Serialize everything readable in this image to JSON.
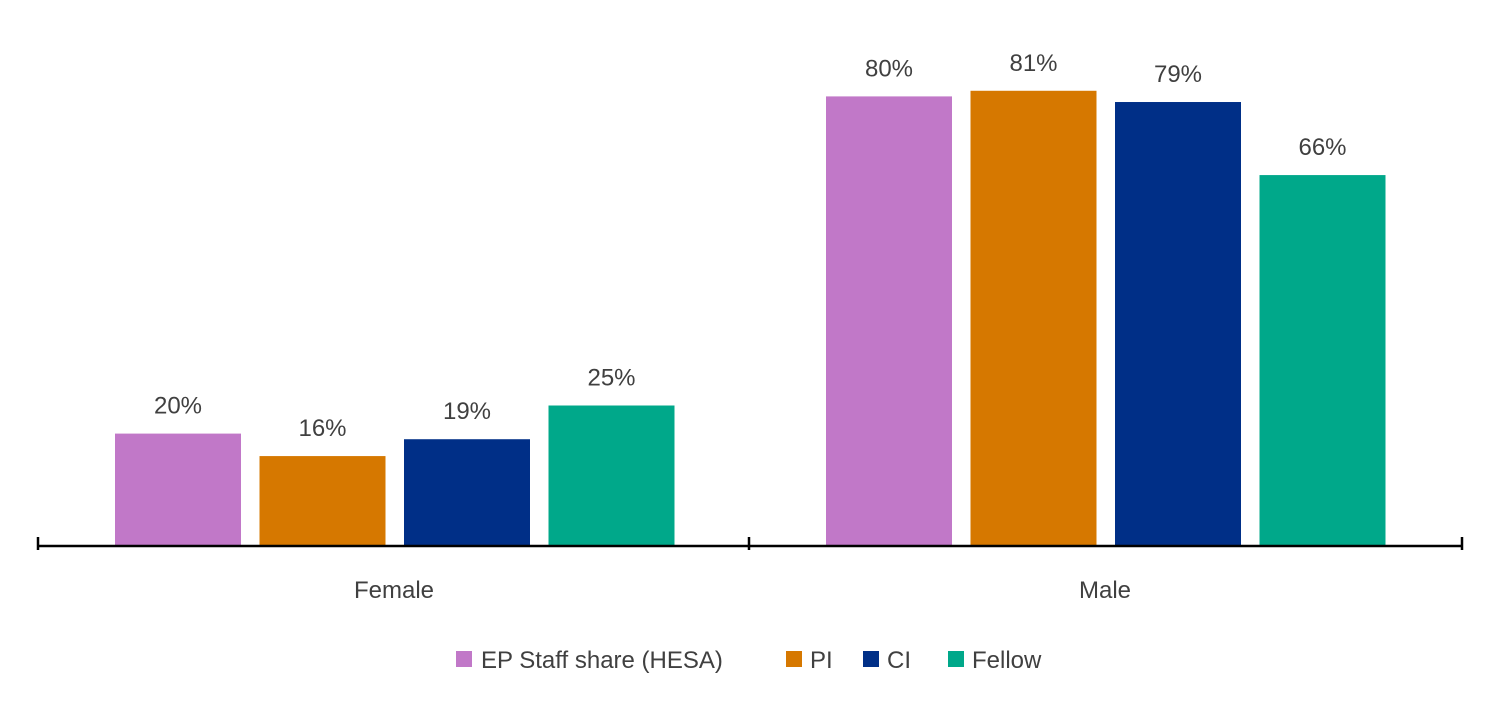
{
  "chart_data": {
    "type": "bar",
    "title": "",
    "xlabel": "",
    "ylabel": "",
    "ylim": [
      0,
      85
    ],
    "grid": false,
    "legend_position": "bottom",
    "categories": [
      "Female",
      "Male"
    ],
    "series": [
      {
        "name": "EP Staff share (HESA)",
        "color": "#C178C8",
        "values": [
          20,
          80
        ],
        "labels": [
          "20%",
          "80%"
        ]
      },
      {
        "name": "PI",
        "color": "#D67800",
        "values": [
          16,
          81
        ],
        "labels": [
          "16%",
          "81%"
        ]
      },
      {
        "name": "CI",
        "color": "#002F87",
        "values": [
          19,
          79
        ],
        "labels": [
          "19%",
          "79%"
        ]
      },
      {
        "name": "Fellow",
        "color": "#00A88A",
        "values": [
          25,
          66
        ],
        "labels": [
          "25%",
          "66%"
        ]
      }
    ]
  }
}
